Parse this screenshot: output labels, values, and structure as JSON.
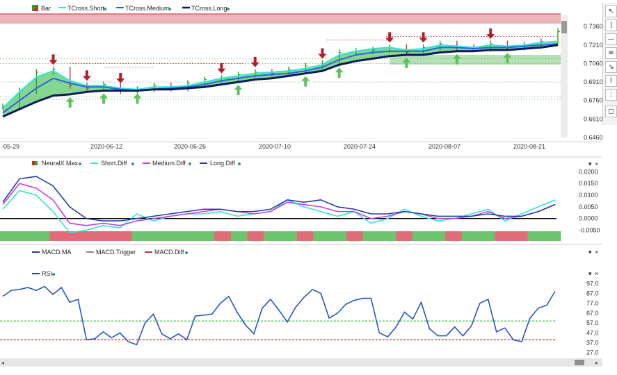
{
  "chart_data": [
    {
      "type": "line",
      "panel": "price",
      "legend": [
        "Bar",
        "TCross.Short",
        "TCross.Medium",
        "TCross.Long"
      ],
      "x_tick_labels": [
        "-05-29",
        "2020-06-12",
        "2020-06-26",
        "2020-07-10",
        "2020-07-24",
        "2020-08-07",
        "2020-08-21"
      ],
      "y_ticks": [
        0.646,
        0.661,
        0.676,
        0.691,
        0.706,
        0.721,
        0.736
      ],
      "ylim": [
        0.646,
        0.744
      ],
      "colors": {
        "bar": "#2ca02c",
        "short": "#2ee6d6",
        "medium": "#2b62e6",
        "long": "#0a1a5c",
        "fill": "#5cc96b",
        "resistance_zone": "#e8a7aa",
        "support_zone": "#a9dba9"
      },
      "series": [
        {
          "name": "TCross.Short",
          "values": [
            0.67,
            0.683,
            0.695,
            0.7,
            0.692,
            0.688,
            0.688,
            0.686,
            0.685,
            0.687,
            0.687,
            0.688,
            0.691,
            0.694,
            0.696,
            0.698,
            0.699,
            0.7,
            0.702,
            0.705,
            0.713,
            0.716,
            0.718,
            0.719,
            0.717,
            0.718,
            0.721,
            0.72,
            0.719,
            0.721,
            0.72,
            0.721,
            0.723,
            0.724
          ]
        },
        {
          "name": "TCross.Medium",
          "values": [
            0.666,
            0.676,
            0.686,
            0.694,
            0.69,
            0.687,
            0.687,
            0.685,
            0.684,
            0.685,
            0.686,
            0.687,
            0.689,
            0.692,
            0.694,
            0.696,
            0.697,
            0.698,
            0.7,
            0.703,
            0.709,
            0.713,
            0.715,
            0.716,
            0.716,
            0.716,
            0.719,
            0.719,
            0.718,
            0.719,
            0.719,
            0.72,
            0.721,
            0.722
          ]
        },
        {
          "name": "TCross.Long",
          "values": [
            0.663,
            0.669,
            0.675,
            0.68,
            0.681,
            0.683,
            0.684,
            0.684,
            0.684,
            0.685,
            0.685,
            0.686,
            0.687,
            0.689,
            0.691,
            0.693,
            0.694,
            0.696,
            0.698,
            0.7,
            0.705,
            0.708,
            0.71,
            0.712,
            0.713,
            0.713,
            0.715,
            0.716,
            0.716,
            0.717,
            0.717,
            0.718,
            0.719,
            0.721
          ]
        },
        {
          "name": "Bar",
          "values": [
            0.671,
            0.684,
            0.699,
            0.701,
            0.688,
            0.686,
            0.689,
            0.684,
            0.685,
            0.688,
            0.686,
            0.69,
            0.693,
            0.694,
            0.697,
            0.699,
            0.698,
            0.701,
            0.704,
            0.706,
            0.715,
            0.716,
            0.717,
            0.719,
            0.715,
            0.719,
            0.722,
            0.719,
            0.718,
            0.722,
            0.719,
            0.721,
            0.724,
            0.732
          ]
        }
      ],
      "down_arrows_at_index": [
        3,
        5,
        7,
        13,
        15,
        19,
        23,
        25,
        29
      ],
      "up_arrows_at_index": [
        4,
        6,
        8,
        14,
        18,
        20,
        24,
        27,
        30
      ]
    },
    {
      "type": "line",
      "panel": "diff",
      "legend": [
        "NeuralX.Max",
        "Short.Diff",
        "Medium.Diff",
        "Long.Diff"
      ],
      "y_ticks": [
        -0.005,
        0.0,
        0.005,
        0.01,
        0.015,
        0.02
      ],
      "ylim": [
        -0.0075,
        0.021
      ],
      "colors": {
        "short": "#2ee6d6",
        "medium": "#c13fe0",
        "long": "#1c3ea8",
        "zero": "#000000",
        "up": "#6cc56c",
        "down": "#e06c7a"
      },
      "series": [
        {
          "name": "Short.Diff",
          "values": [
            0.004,
            0.012,
            0.01,
            0.003,
            -0.006,
            -0.005,
            -0.003,
            -0.004,
            0.002,
            -0.001,
            0.001,
            0.002,
            0.002,
            0.003,
            0.001,
            0.002,
            0.003,
            0.008,
            0.005,
            0.003,
            0.001,
            0.003,
            -0.002,
            0.0,
            0.004,
            0.001,
            -0.001,
            0.0,
            0.002,
            0.004,
            -0.001,
            0.002,
            0.005,
            0.008
          ]
        },
        {
          "name": "Medium.Diff",
          "values": [
            0.006,
            0.015,
            0.013,
            0.008,
            -0.002,
            -0.003,
            -0.002,
            -0.003,
            -0.001,
            0.0,
            0.001,
            0.002,
            0.003,
            0.004,
            0.003,
            0.002,
            0.003,
            0.007,
            0.006,
            0.005,
            0.003,
            0.003,
            0.0,
            0.001,
            0.003,
            0.002,
            0.0,
            0.0,
            0.001,
            0.003,
            0.0,
            0.001,
            0.003,
            0.006
          ]
        },
        {
          "name": "Long.Diff",
          "values": [
            0.007,
            0.017,
            0.018,
            0.014,
            0.005,
            0.0,
            -0.001,
            -0.001,
            0.0,
            0.001,
            0.002,
            0.003,
            0.004,
            0.004,
            0.003,
            0.003,
            0.004,
            0.008,
            0.007,
            0.008,
            0.005,
            0.004,
            0.002,
            0.002,
            0.003,
            0.002,
            0.001,
            0.001,
            0.001,
            0.002,
            0.001,
            0.001,
            0.003,
            0.006
          ]
        }
      ],
      "neural_states": [
        "up",
        "up",
        "up",
        "down",
        "down",
        "down",
        "down",
        "down",
        "up",
        "up",
        "up",
        "up",
        "up",
        "down",
        "up",
        "down",
        "up",
        "up",
        "down",
        "up",
        "up",
        "down",
        "up",
        "up",
        "down",
        "up",
        "up",
        "down",
        "up",
        "up",
        "down",
        "down",
        "up",
        "up"
      ]
    },
    {
      "type": "line",
      "panel": "macd",
      "legend": [
        "MACD.MA",
        "MACD.Trigger",
        "MACD.Diff"
      ],
      "series": []
    },
    {
      "type": "line",
      "panel": "rsi",
      "legend": [
        "RSI"
      ],
      "y_ticks": [
        27.0,
        37.0,
        47.0,
        57.0,
        67.0,
        77.0,
        87.0,
        97.0
      ],
      "ylim": [
        24.0,
        100.0
      ],
      "hlines": [
        {
          "value": 59.0,
          "color": "#2ec52e"
        },
        {
          "value": 40.0,
          "color": "#d21f1f"
        }
      ],
      "series": [
        {
          "name": "RSI",
          "values": [
            84,
            90,
            91,
            93,
            90,
            94,
            86,
            93,
            78,
            81,
            40,
            41,
            48,
            42,
            47,
            38,
            35,
            57,
            66,
            46,
            41,
            46,
            40,
            64,
            65,
            66,
            77,
            84,
            68,
            55,
            46,
            72,
            81,
            70,
            58,
            73,
            83,
            91,
            87,
            62,
            67,
            76,
            80,
            82,
            82,
            47,
            43,
            53,
            68,
            61,
            78,
            51,
            44,
            44,
            53,
            44,
            54,
            77,
            81,
            48,
            52,
            40,
            38,
            62,
            72,
            75,
            89
          ]
        }
      ]
    }
  ]
}
